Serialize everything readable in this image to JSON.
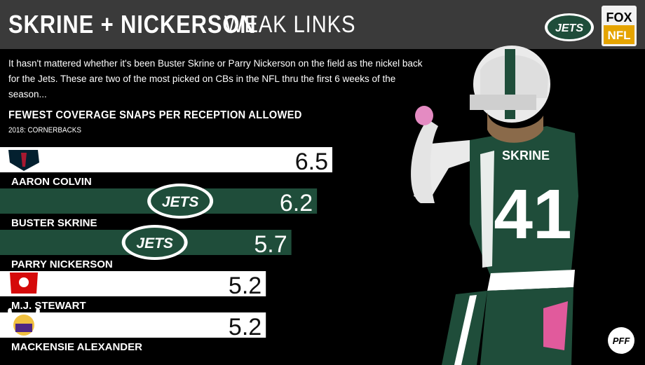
{
  "title": {
    "strong": "SKRINE + NICKERSON",
    "light": "WEAK LINKS"
  },
  "subtitle": "It hasn't mattered whether it's been Buster Skrine or Parry Nickerson on the field as the nickel back for the Jets. These are two of the most picked on CBs in the NFL thru the first 6 weeks of the season...",
  "chart_heading": "FEWEST COVERAGE SNAPS PER RECEPTION ALLOWED",
  "chart_subheading": "2018: CORNERBACKS",
  "badges": {
    "network_top": "FOX",
    "network_bottom": "NFL",
    "team_logo_text": "JETS",
    "pff_text": "PFF"
  },
  "jersey": {
    "number": "41",
    "name": "SKRINE"
  },
  "colors": {
    "jets_green": "#1f4d3a",
    "bar_white": "#ffffff",
    "background": "#000000"
  },
  "chart_data": {
    "type": "bar",
    "orientation": "horizontal",
    "title": "FEWEST COVERAGE SNAPS PER RECEPTION ALLOWED",
    "subtitle": "2018: CORNERBACKS",
    "categories": [
      "AARON COLVIN",
      "BUSTER SKRINE",
      "PARRY NICKERSON",
      "M.J. STEWART",
      "MACKENSIE ALEXANDER"
    ],
    "values": [
      6.5,
      6.2,
      5.7,
      5.2,
      5.2
    ],
    "value_labels": [
      "6.5",
      "6.2",
      "5.7",
      "5.2",
      "5.2"
    ],
    "teams": [
      "texans-logo",
      "jets-logo",
      "jets-logo",
      "buccaneers-logo",
      "vikings-logo"
    ],
    "bar_colors": [
      "#ffffff",
      "#1f4d3a",
      "#1f4d3a",
      "#ffffff",
      "#ffffff"
    ],
    "xlim": [
      0,
      6.5
    ],
    "grid": false
  }
}
